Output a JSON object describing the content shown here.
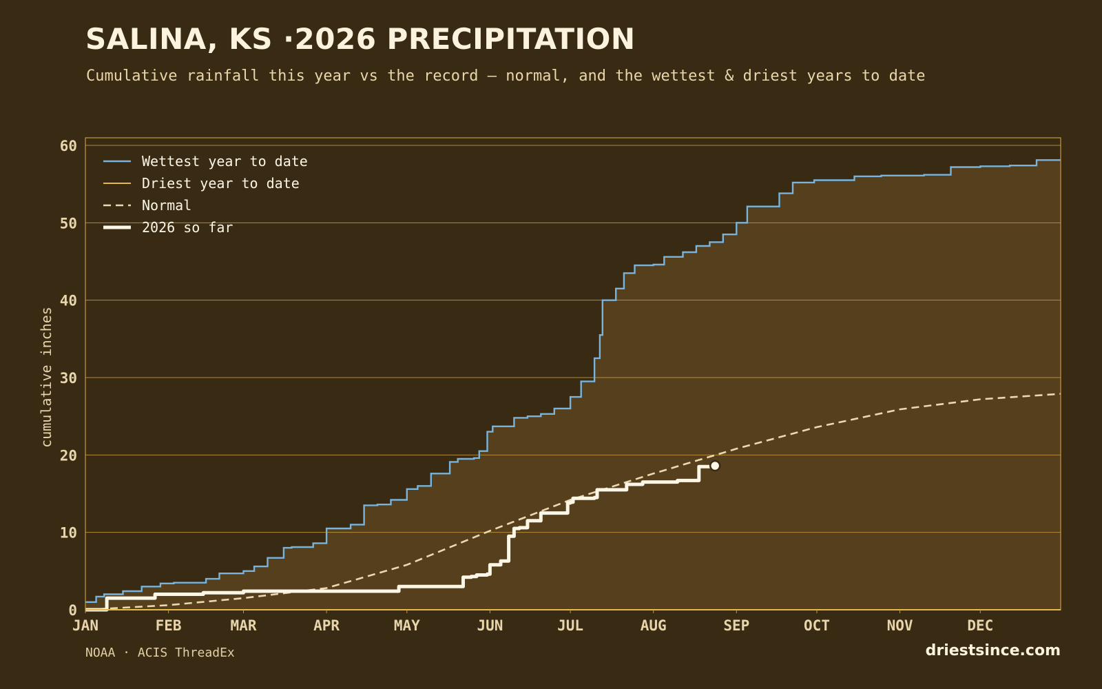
{
  "header": {
    "title": "SALINA, KS ·2026 PRECIPITATION",
    "subtitle": "Cumulative rainfall this year vs the record — normal, and the wettest & driest years to date"
  },
  "footer": {
    "source": "NOAA · ACIS ThreadEx",
    "brand": "driestsince.com"
  },
  "colors": {
    "background": "#382a13",
    "band_fill": "#553f1d",
    "wettest": "#78b4dc",
    "driest": "#e8b84a",
    "normal": "#ecd9b0",
    "current": "#fcf6e6",
    "grid": "#c99a3e",
    "tick_text": "#e8d5ac"
  },
  "chart_data": {
    "type": "line",
    "xlabel": "",
    "ylabel": "cumulative inches",
    "ylim": [
      0,
      60
    ],
    "yticks": [
      0,
      10,
      20,
      30,
      40,
      50,
      60
    ],
    "xlim": [
      "2026-01-01",
      "2026-12-31"
    ],
    "x_ticks": [
      {
        "label": "JAN",
        "date": "2026-01-01"
      },
      {
        "label": "FEB",
        "date": "2026-02-01"
      },
      {
        "label": "MAR",
        "date": "2026-03-01"
      },
      {
        "label": "APR",
        "date": "2026-04-01"
      },
      {
        "label": "MAY",
        "date": "2026-05-01"
      },
      {
        "label": "JUN",
        "date": "2026-06-01"
      },
      {
        "label": "JUL",
        "date": "2026-07-01"
      },
      {
        "label": "AUG",
        "date": "2026-08-01"
      },
      {
        "label": "SEP",
        "date": "2026-09-01"
      },
      {
        "label": "OCT",
        "date": "2026-10-01"
      },
      {
        "label": "NOV",
        "date": "2026-11-01"
      },
      {
        "label": "DEC",
        "date": "2026-12-01"
      }
    ],
    "grid": true,
    "legend_position": "top-left",
    "series": [
      {
        "name": "Wettest year to date",
        "style": "solid",
        "x": [
          "2026-01-01",
          "2026-01-05",
          "2026-01-08",
          "2026-01-15",
          "2026-01-22",
          "2026-01-29",
          "2026-02-03",
          "2026-02-15",
          "2026-02-20",
          "2026-03-01",
          "2026-03-05",
          "2026-03-10",
          "2026-03-16",
          "2026-03-19",
          "2026-03-27",
          "2026-04-01",
          "2026-04-10",
          "2026-04-15",
          "2026-04-20",
          "2026-04-25",
          "2026-05-01",
          "2026-05-05",
          "2026-05-10",
          "2026-05-17",
          "2026-05-20",
          "2026-05-26",
          "2026-05-28",
          "2026-05-31",
          "2026-06-02",
          "2026-06-10",
          "2026-06-15",
          "2026-06-20",
          "2026-06-25",
          "2026-07-01",
          "2026-07-05",
          "2026-07-10",
          "2026-07-12",
          "2026-07-13",
          "2026-07-18",
          "2026-07-21",
          "2026-07-25",
          "2026-08-01",
          "2026-08-05",
          "2026-08-12",
          "2026-08-17",
          "2026-08-22",
          "2026-08-27",
          "2026-09-01",
          "2026-09-05",
          "2026-09-17",
          "2026-09-22",
          "2026-09-30",
          "2026-10-15",
          "2026-10-25",
          "2026-11-10",
          "2026-11-20",
          "2026-12-01",
          "2026-12-12",
          "2026-12-22",
          "2026-12-31"
        ],
        "values": [
          1.0,
          1.7,
          2.0,
          2.4,
          3.0,
          3.4,
          3.5,
          4.0,
          4.7,
          5.0,
          5.6,
          6.7,
          8.0,
          8.1,
          8.6,
          10.5,
          11.0,
          13.5,
          13.6,
          14.2,
          15.6,
          16.0,
          17.6,
          19.1,
          19.5,
          19.6,
          20.5,
          23.0,
          23.7,
          24.8,
          25.0,
          25.3,
          26.0,
          27.5,
          29.5,
          32.5,
          35.5,
          40.0,
          41.5,
          43.5,
          44.5,
          44.6,
          45.6,
          46.2,
          47.0,
          47.5,
          48.5,
          50.0,
          52.1,
          53.8,
          55.2,
          55.5,
          56.0,
          56.1,
          56.2,
          57.2,
          57.3,
          57.4,
          58.1,
          58.1
        ]
      },
      {
        "name": "Driest year to date",
        "style": "solid",
        "x": [
          "2026-01-01",
          "2026-12-31"
        ],
        "values": [
          0.0,
          0.0
        ]
      },
      {
        "name": "Normal",
        "style": "dashed",
        "x": [
          "2026-01-01",
          "2026-02-01",
          "2026-03-01",
          "2026-04-01",
          "2026-05-01",
          "2026-06-01",
          "2026-07-01",
          "2026-08-01",
          "2026-09-01",
          "2026-10-01",
          "2026-11-01",
          "2026-12-01",
          "2026-12-31"
        ],
        "values": [
          0.0,
          0.6,
          1.5,
          2.8,
          5.8,
          10.2,
          14.2,
          17.6,
          20.8,
          23.6,
          25.9,
          27.2,
          27.9
        ]
      },
      {
        "name": "2026 so far",
        "style": "solid-thick",
        "x": [
          "2026-01-01",
          "2026-01-08",
          "2026-01-09",
          "2026-01-25",
          "2026-01-27",
          "2026-02-13",
          "2026-02-14",
          "2026-03-01",
          "2026-03-10",
          "2026-04-27",
          "2026-04-28",
          "2026-05-21",
          "2026-05-22",
          "2026-05-25",
          "2026-05-27",
          "2026-05-31",
          "2026-06-01",
          "2026-06-05",
          "2026-06-08",
          "2026-06-10",
          "2026-06-12",
          "2026-06-15",
          "2026-06-20",
          "2026-06-30",
          "2026-07-01",
          "2026-07-02",
          "2026-07-10",
          "2026-07-11",
          "2026-07-21",
          "2026-07-22",
          "2026-07-28",
          "2026-08-10",
          "2026-08-17",
          "2026-08-18",
          "2026-08-24"
        ],
        "values": [
          0.0,
          0.0,
          1.5,
          1.5,
          2.0,
          2.0,
          2.2,
          2.4,
          2.4,
          2.4,
          3.0,
          3.0,
          4.2,
          4.3,
          4.5,
          4.6,
          5.8,
          6.3,
          9.5,
          10.5,
          10.6,
          11.5,
          12.5,
          13.8,
          13.9,
          14.4,
          14.5,
          15.5,
          15.5,
          16.2,
          16.5,
          16.7,
          16.7,
          18.5,
          18.6
        ]
      }
    ],
    "current_marker": {
      "x": "2026-08-24",
      "value": 18.6
    }
  }
}
